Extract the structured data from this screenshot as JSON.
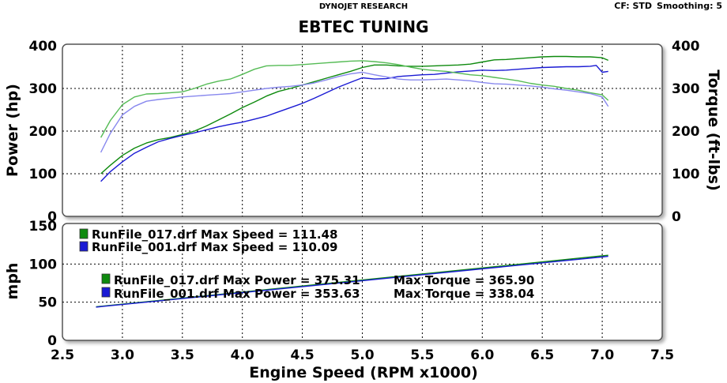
{
  "header": {
    "company": "DYNOJET RESEARCH",
    "cf": "CF: STD",
    "smoothing": "Smoothing: 5",
    "title": "EBTEC TUNING"
  },
  "chart_data": [
    {
      "type": "line",
      "title": "EBTEC TUNING",
      "xlabel": "Engine Speed (RPM x1000)",
      "ylabel": "Power (hp)",
      "y2label": "Torque (ft-lbs)",
      "xlim": [
        2.5,
        7.5
      ],
      "ylim": [
        0,
        400
      ],
      "y2lim": [
        0,
        400
      ],
      "x_ticks": [
        "2.5",
        "3.0",
        "3.5",
        "4.0",
        "4.5",
        "5.0",
        "5.5",
        "6.0",
        "6.5",
        "7.0",
        "7.5"
      ],
      "y_ticks": [
        "0",
        "100",
        "200",
        "300",
        "400"
      ],
      "y2_ticks": [
        "0",
        "100",
        "200",
        "300",
        "400"
      ],
      "grid": true,
      "series": [
        {
          "name": "RunFile_017.drf Power",
          "color": "#0e8a0e",
          "x": [
            2.82,
            2.9,
            3.0,
            3.1,
            3.2,
            3.3,
            3.4,
            3.5,
            3.6,
            3.7,
            3.8,
            3.9,
            4.0,
            4.1,
            4.2,
            4.3,
            4.4,
            4.5,
            4.6,
            4.7,
            4.8,
            4.9,
            5.0,
            5.1,
            5.2,
            5.3,
            5.4,
            5.5,
            5.6,
            5.7,
            5.8,
            5.9,
            6.0,
            6.1,
            6.2,
            6.3,
            6.4,
            6.5,
            6.6,
            6.7,
            6.8,
            6.9,
            7.0,
            7.05
          ],
          "y": [
            100,
            120,
            143,
            160,
            172,
            180,
            185,
            192,
            200,
            212,
            226,
            240,
            255,
            268,
            282,
            293,
            300,
            308,
            316,
            324,
            332,
            340,
            349,
            355,
            355,
            353,
            352,
            352,
            353,
            354,
            355,
            357,
            362,
            367,
            368,
            370,
            372,
            374,
            375,
            375,
            374,
            374,
            372,
            366
          ]
        },
        {
          "name": "RunFile_001.drf Power",
          "color": "#1a1ad4",
          "x": [
            2.82,
            2.9,
            3.0,
            3.1,
            3.2,
            3.3,
            3.4,
            3.5,
            3.6,
            3.7,
            3.8,
            3.9,
            4.0,
            4.1,
            4.2,
            4.3,
            4.4,
            4.5,
            4.6,
            4.7,
            4.8,
            4.9,
            5.0,
            5.1,
            5.2,
            5.3,
            5.4,
            5.5,
            5.6,
            5.7,
            5.8,
            5.9,
            6.0,
            6.1,
            6.2,
            6.3,
            6.4,
            6.5,
            6.6,
            6.7,
            6.8,
            6.9,
            6.95,
            7.0,
            7.05
          ],
          "y": [
            82,
            105,
            128,
            148,
            162,
            175,
            183,
            190,
            196,
            203,
            210,
            216,
            221,
            228,
            235,
            245,
            255,
            265,
            277,
            290,
            303,
            314,
            325,
            322,
            323,
            328,
            330,
            332,
            333,
            336,
            339,
            341,
            343,
            342,
            343,
            345,
            347,
            349,
            350,
            351,
            351,
            352,
            354,
            338,
            340
          ]
        },
        {
          "name": "RunFile_017.drf Torque",
          "color": "#55bb55",
          "x": [
            2.82,
            2.9,
            3.0,
            3.1,
            3.2,
            3.3,
            3.4,
            3.5,
            3.6,
            3.7,
            3.8,
            3.9,
            4.0,
            4.1,
            4.2,
            4.3,
            4.4,
            4.5,
            4.6,
            4.7,
            4.8,
            4.9,
            5.0,
            5.1,
            5.2,
            5.3,
            5.4,
            5.5,
            5.6,
            5.7,
            5.8,
            5.9,
            6.0,
            6.1,
            6.2,
            6.3,
            6.4,
            6.5,
            6.6,
            6.7,
            6.8,
            6.9,
            7.0,
            7.05
          ],
          "y": [
            185,
            225,
            262,
            280,
            287,
            288,
            290,
            292,
            300,
            310,
            317,
            322,
            333,
            345,
            353,
            354,
            354,
            356,
            358,
            360,
            362,
            364,
            365,
            363,
            360,
            356,
            350,
            345,
            342,
            340,
            336,
            332,
            330,
            326,
            322,
            318,
            312,
            308,
            305,
            300,
            296,
            290,
            285,
            272
          ]
        },
        {
          "name": "RunFile_001.drf Torque",
          "color": "#8888ee",
          "x": [
            2.82,
            2.9,
            3.0,
            3.1,
            3.2,
            3.3,
            3.4,
            3.5,
            3.6,
            3.7,
            3.8,
            3.9,
            4.0,
            4.1,
            4.2,
            4.3,
            4.4,
            4.5,
            4.6,
            4.7,
            4.8,
            4.9,
            5.0,
            5.1,
            5.2,
            5.3,
            5.4,
            5.5,
            5.6,
            5.7,
            5.8,
            5.9,
            6.0,
            6.1,
            6.2,
            6.3,
            6.4,
            6.5,
            6.6,
            6.7,
            6.8,
            6.9,
            7.0,
            7.05
          ],
          "y": [
            150,
            195,
            238,
            258,
            270,
            274,
            277,
            280,
            282,
            284,
            286,
            288,
            292,
            296,
            300,
            303,
            305,
            308,
            313,
            320,
            328,
            334,
            338,
            332,
            327,
            322,
            320,
            320,
            321,
            322,
            320,
            318,
            314,
            311,
            310,
            308,
            306,
            303,
            299,
            296,
            292,
            288,
            280,
            258
          ]
        }
      ]
    },
    {
      "type": "line",
      "xlabel": "Engine Speed (RPM x1000)",
      "ylabel": "mph",
      "xlim": [
        2.5,
        7.5
      ],
      "ylim": [
        0,
        150
      ],
      "x_ticks": [
        "2.5",
        "3.0",
        "3.5",
        "4.0",
        "4.5",
        "5.0",
        "5.5",
        "6.0",
        "6.5",
        "7.0",
        "7.5"
      ],
      "y_ticks": [
        "0",
        "50",
        "100",
        "150"
      ],
      "grid": true,
      "series": [
        {
          "name": "RunFile_017.drf",
          "color": "#0e8a0e",
          "x": [
            2.78,
            7.05
          ],
          "y": [
            44,
            111.48
          ]
        },
        {
          "name": "RunFile_001.drf",
          "color": "#1a1ad4",
          "x": [
            2.78,
            7.05
          ],
          "y": [
            43.5,
            110.09
          ]
        }
      ],
      "annotations": {
        "speed_017": "RunFile_017.drf Max Speed = 111.48",
        "speed_001": "RunFile_001.drf Max Speed = 110.09",
        "power_017": "RunFile_017.drf Max Power = 375.31",
        "torque_017": "Max Torque = 365.90",
        "power_001": "RunFile_001.drf Max Power = 353.63",
        "torque_001": "Max Torque = 338.04"
      }
    }
  ]
}
